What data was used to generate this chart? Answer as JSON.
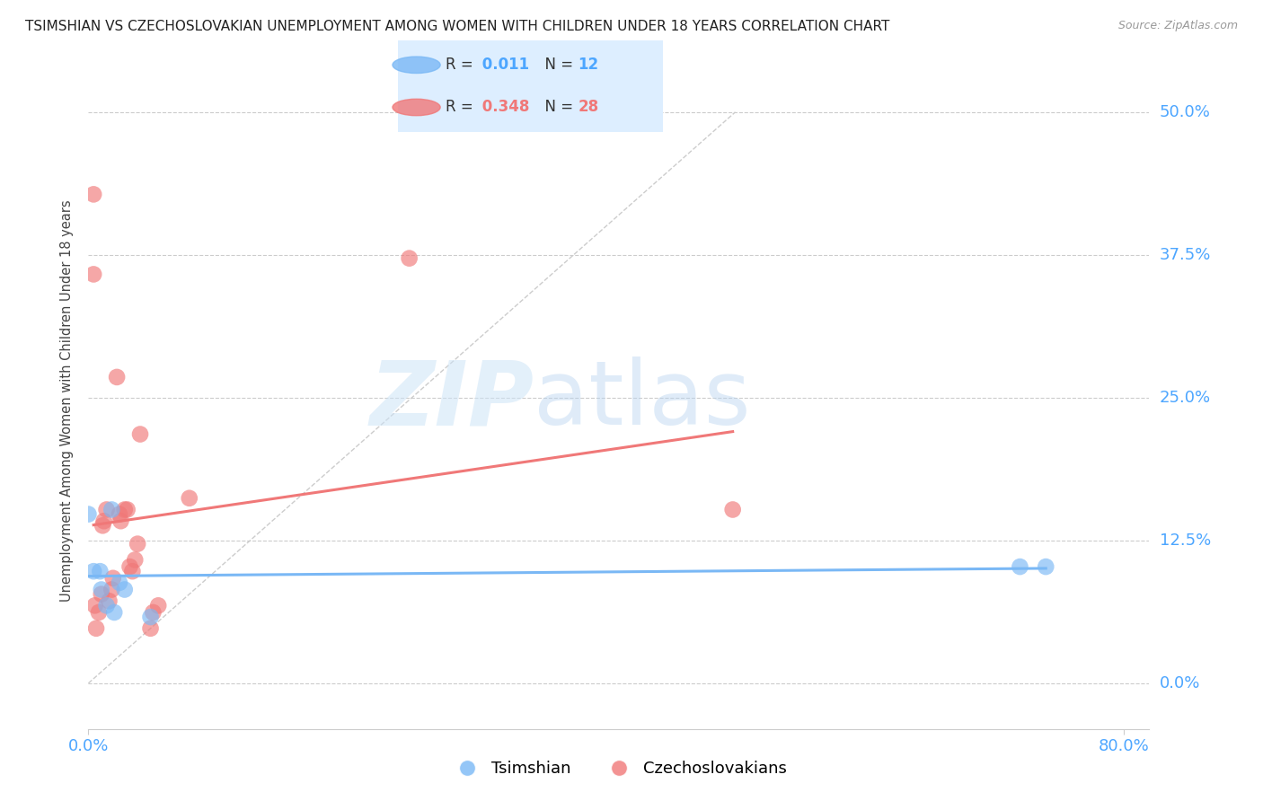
{
  "title": "TSIMSHIAN VS CZECHOSLOVAKIAN UNEMPLOYMENT AMONG WOMEN WITH CHILDREN UNDER 18 YEARS CORRELATION CHART",
  "source": "Source: ZipAtlas.com",
  "ylabel": "Unemployment Among Women with Children Under 18 years",
  "series": [
    {
      "name": "Tsimshian",
      "color": "#7ab8f5",
      "R": 0.011,
      "N": 12,
      "x": [
        0.0,
        0.004,
        0.009,
        0.01,
        0.014,
        0.018,
        0.02,
        0.024,
        0.028,
        0.048,
        0.72,
        0.74
      ],
      "y": [
        0.148,
        0.098,
        0.098,
        0.082,
        0.068,
        0.152,
        0.062,
        0.088,
        0.082,
        0.058,
        0.102,
        0.102
      ]
    },
    {
      "name": "Czechoslovakians",
      "color": "#f07878",
      "R": 0.348,
      "N": 28,
      "x": [
        0.004,
        0.004,
        0.005,
        0.006,
        0.008,
        0.01,
        0.011,
        0.012,
        0.014,
        0.016,
        0.018,
        0.019,
        0.022,
        0.024,
        0.025,
        0.028,
        0.03,
        0.032,
        0.034,
        0.036,
        0.038,
        0.04,
        0.048,
        0.05,
        0.054,
        0.078,
        0.248,
        0.498
      ],
      "y": [
        0.428,
        0.358,
        0.068,
        0.048,
        0.062,
        0.078,
        0.138,
        0.142,
        0.152,
        0.072,
        0.082,
        0.092,
        0.268,
        0.148,
        0.142,
        0.152,
        0.152,
        0.102,
        0.098,
        0.108,
        0.122,
        0.218,
        0.048,
        0.062,
        0.068,
        0.162,
        0.372,
        0.152
      ]
    }
  ],
  "xlim": [
    0.0,
    0.82
  ],
  "ylim": [
    -0.04,
    0.535
  ],
  "yticks": [
    0.0,
    0.125,
    0.25,
    0.375,
    0.5
  ],
  "ytick_labels": [
    "0.0%",
    "12.5%",
    "25.0%",
    "37.5%",
    "50.0%"
  ],
  "xticks": [
    0.0,
    0.8
  ],
  "xtick_labels": [
    "0.0%",
    "80.0%"
  ],
  "grid_color": "#cccccc",
  "bg_color": "#ffffff",
  "diagonal_color": "#c0c0c0",
  "title_fontsize": 11,
  "axis_label_fontsize": 10.5,
  "tick_fontsize": 13,
  "legend_fontsize": 13,
  "tsim_color": "#7ab8f5",
  "czech_color": "#f07878",
  "blue_text": "#4da6ff",
  "pink_text": "#f07878"
}
